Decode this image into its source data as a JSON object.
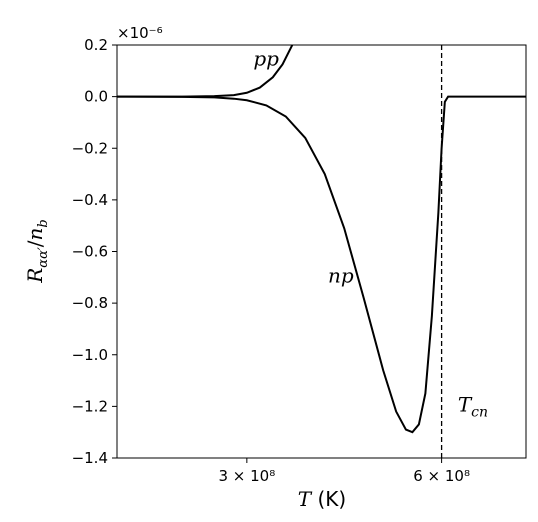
{
  "chart_data": {
    "type": "line",
    "title": "",
    "xlabel": "T (K)",
    "ylabel": "R_{αα'}/n_b",
    "y_scale_label": "×10⁻⁶",
    "xlim": [
      100000000,
      730000000
    ],
    "ylim": [
      -1.4,
      0.2
    ],
    "y_ticks": [
      0.2,
      0.0,
      -0.2,
      -0.4,
      -0.6,
      -0.8,
      -1.0,
      -1.2,
      -1.4
    ],
    "y_tick_labels": [
      "0.2",
      "0.0",
      "−0.2",
      "−0.4",
      "−0.6",
      "−0.8",
      "−1.0",
      "−1.2",
      "−1.4"
    ],
    "x_ticks": [
      300000000,
      600000000
    ],
    "x_tick_labels": [
      "3 × 10⁸",
      "6 × 10⁸"
    ],
    "grid": false,
    "legend": "none",
    "series": [
      {
        "name": "pp",
        "x": [
          100000000,
          200000000,
          250000000,
          280000000,
          300000000,
          320000000,
          340000000,
          355000000,
          370000000,
          380000000
        ],
        "y": [
          0.0,
          0.0,
          0.002,
          0.006,
          0.015,
          0.035,
          0.075,
          0.125,
          0.2,
          0.26
        ]
      },
      {
        "name": "np",
        "x": [
          100000000,
          200000000,
          250000000,
          280000000,
          300000000,
          330000000,
          360000000,
          390000000,
          420000000,
          450000000,
          480000000,
          510000000,
          530000000,
          545000000,
          555000000,
          565000000,
          575000000,
          585000000,
          595000000,
          600000000,
          605000000,
          610000000,
          730000000
        ],
        "y": [
          0.0,
          -0.001,
          -0.003,
          -0.008,
          -0.014,
          -0.034,
          -0.077,
          -0.16,
          -0.3,
          -0.51,
          -0.78,
          -1.06,
          -1.22,
          -1.29,
          -1.3,
          -1.27,
          -1.15,
          -0.85,
          -0.45,
          -0.2,
          -0.02,
          0.0,
          0.0
        ]
      }
    ],
    "annotations": [
      {
        "text": "pp",
        "x": 310000000,
        "y": 0.12
      },
      {
        "text": "np",
        "x": 425000000,
        "y": -0.72
      },
      {
        "text": "T_{cn}",
        "x": 625000000,
        "y": -1.22
      }
    ],
    "vline": {
      "x": 600000000,
      "style": "dashed"
    }
  }
}
